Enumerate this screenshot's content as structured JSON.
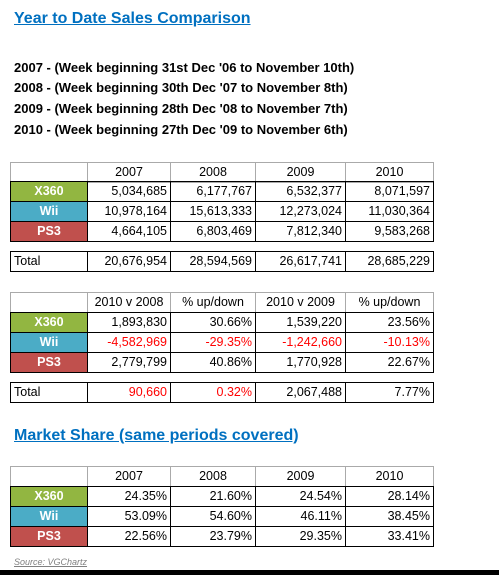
{
  "title": "Year to Date Sales Comparison",
  "periods": [
    "2007  -  (Week beginning 31st Dec '06 to November 10th)",
    "2008  -  (Week beginning 30th Dec '07 to November 8th)",
    "2009  -  (Week beginning 28th Dec '08 to November 7th)",
    "2010  -  (Week beginning 27th Dec '09 to November 6th)"
  ],
  "tables": [
    {
      "headers": [
        "2007",
        "2008",
        "2009",
        "2010"
      ],
      "rows": [
        {
          "label": "X360",
          "cells": [
            "5,034,685",
            "6,177,767",
            "6,532,377",
            "8,071,597"
          ]
        },
        {
          "label": "Wii",
          "cells": [
            "10,978,164",
            "15,613,333",
            "12,273,024",
            "11,030,364"
          ]
        },
        {
          "label": "PS3",
          "cells": [
            "4,664,105",
            "6,803,469",
            "7,812,340",
            "9,583,268"
          ]
        }
      ],
      "total": {
        "label": "Total",
        "cells": [
          "20,676,954",
          "28,594,569",
          "26,617,741",
          "28,685,229"
        ]
      }
    },
    {
      "headers": [
        "2010 v 2008",
        "% up/down",
        "2010 v 2009",
        "% up/down"
      ],
      "rows": [
        {
          "label": "X360",
          "cells": [
            "1,893,830",
            "30.66%",
            "1,539,220",
            "23.56%"
          ]
        },
        {
          "label": "Wii",
          "cells": [
            "-4,582,969",
            "-29.35%",
            "-1,242,660",
            "-10.13%"
          ]
        },
        {
          "label": "PS3",
          "cells": [
            "2,779,799",
            "40.86%",
            "1,770,928",
            "22.67%"
          ]
        }
      ],
      "total": {
        "label": "Total",
        "cells": [
          "90,660",
          "0.32%",
          "2,067,488",
          "7.77%"
        ]
      }
    },
    {
      "headers": [
        "2007",
        "2008",
        "2009",
        "2010"
      ],
      "rows": [
        {
          "label": "X360",
          "cells": [
            "24.35%",
            "21.60%",
            "24.54%",
            "28.14%"
          ]
        },
        {
          "label": "Wii",
          "cells": [
            "53.09%",
            "54.60%",
            "46.11%",
            "38.45%"
          ]
        },
        {
          "label": "PS3",
          "cells": [
            "22.56%",
            "23.79%",
            "29.35%",
            "33.41%"
          ]
        }
      ]
    }
  ],
  "section_title": "Market Share (same periods covered)",
  "source": "Source: VGChartz"
}
